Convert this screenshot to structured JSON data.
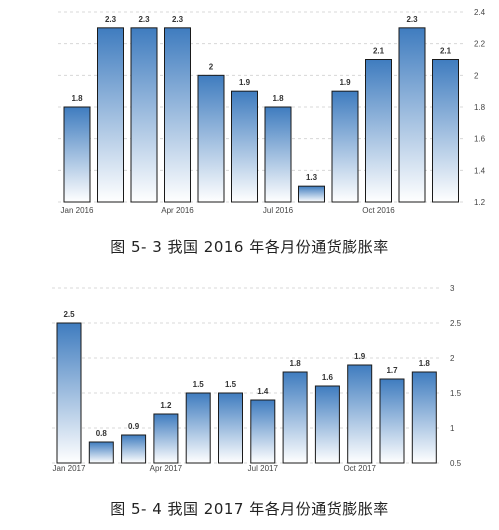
{
  "chart_data": [
    {
      "type": "bar",
      "categories": [
        "2016-01",
        "2016-02",
        "2016-03",
        "2016-04",
        "2016-05",
        "2016-06",
        "2016-07",
        "2016-08",
        "2016-09",
        "2016-10",
        "2016-11",
        "2016-12"
      ],
      "values": [
        1.8,
        2.3,
        2.3,
        2.3,
        2,
        1.9,
        1.8,
        1.3,
        1.9,
        2.1,
        2.3,
        2.1
      ],
      "data_labels": [
        "1.8",
        "2.3",
        "2.3",
        "2.3",
        "2",
        "1.9",
        "1.8",
        "1.3",
        "1.9",
        "2.1",
        "2.3",
        "2.1"
      ],
      "x_tick_labels": [
        {
          "index": 0,
          "label": "Jan 2016"
        },
        {
          "index": 3,
          "label": "Apr 2016"
        },
        {
          "index": 6,
          "label": "Jul 2016"
        },
        {
          "index": 9,
          "label": "Oct 2016"
        }
      ],
      "y_ticks": [
        1.2,
        1.4,
        1.6,
        1.8,
        2,
        2.2,
        2.4
      ],
      "y_tick_labels": [
        "1.2",
        "1.4",
        "1.6",
        "1.8",
        "2",
        "2.2",
        "2.4"
      ],
      "ylim": [
        1.2,
        2.4
      ],
      "y_axis_side": "right",
      "grid": true,
      "bar_color_top": "#3f7cbf",
      "bar_color_bottom": "#ffffff",
      "caption": "图 5- 3 我国 2016 年各月份通货膨胀率"
    },
    {
      "type": "bar",
      "categories": [
        "2017-01",
        "2017-02",
        "2017-03",
        "2017-04",
        "2017-05",
        "2017-06",
        "2017-07",
        "2017-08",
        "2017-09",
        "2017-10",
        "2017-11",
        "2017-12"
      ],
      "values": [
        2.5,
        0.8,
        0.9,
        1.2,
        1.5,
        1.5,
        1.4,
        1.8,
        1.6,
        1.9,
        1.7,
        1.8
      ],
      "data_labels": [
        "2.5",
        "0.8",
        "0.9",
        "1.2",
        "1.5",
        "1.5",
        "1.4",
        "1.8",
        "1.6",
        "1.9",
        "1.7",
        "1.8"
      ],
      "x_tick_labels": [
        {
          "index": 0,
          "label": "Jan 2017"
        },
        {
          "index": 3,
          "label": "Apr 2017"
        },
        {
          "index": 6,
          "label": "Jul 2017"
        },
        {
          "index": 9,
          "label": "Oct 2017"
        }
      ],
      "y_ticks": [
        0.5,
        1,
        1.5,
        2,
        2.5,
        3
      ],
      "y_tick_labels": [
        "0.5",
        "1",
        "1.5",
        "2",
        "2.5",
        "3"
      ],
      "ylim": [
        0.5,
        3
      ],
      "y_axis_side": "right",
      "grid": true,
      "bar_color_top": "#3f7cbf",
      "bar_color_bottom": "#ffffff",
      "caption": "图 5- 4 我国 2017 年各月份通货膨胀率"
    }
  ]
}
